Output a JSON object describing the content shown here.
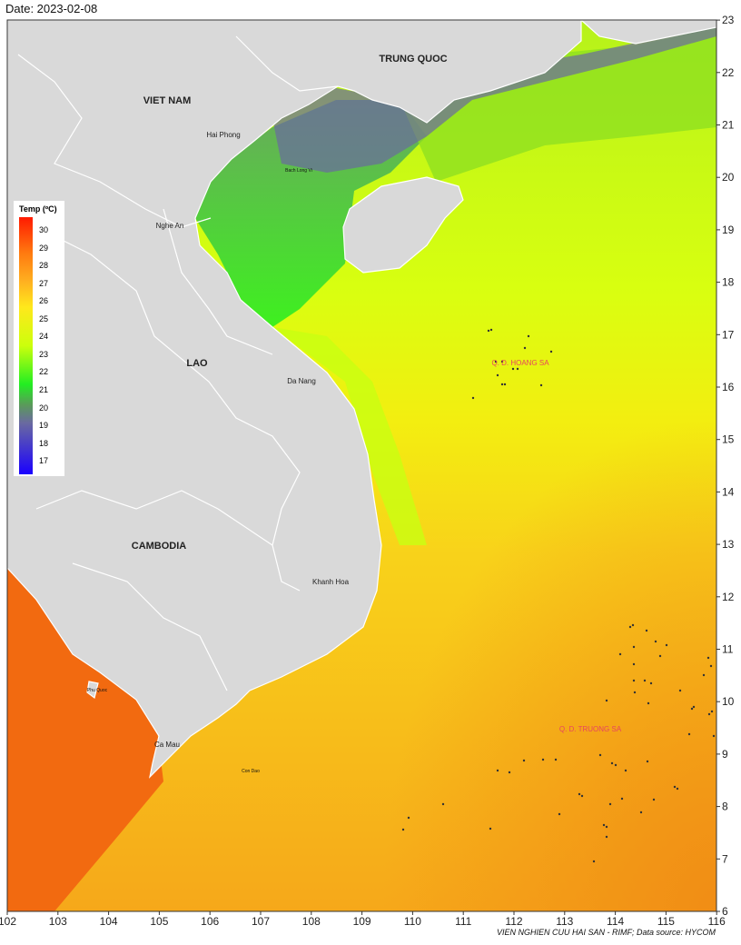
{
  "header": {
    "date": "Date: 2023-02-08"
  },
  "footer": {
    "credit": "VIEN NGHIEN CUU HAI SAN - RIMF; Data source: HYCOM"
  },
  "legend": {
    "title": "Temp (ºC)",
    "ticks": [
      "30",
      "29",
      "28",
      "27",
      "26",
      "25",
      "24",
      "23",
      "22",
      "21",
      "20",
      "19",
      "18",
      "17"
    ]
  },
  "axes": {
    "x_ticks": [
      "102",
      "103",
      "104",
      "105",
      "106",
      "107",
      "108",
      "109",
      "110",
      "111",
      "112",
      "113",
      "114",
      "115",
      "116"
    ],
    "y_ticks": [
      "6",
      "7",
      "8",
      "9",
      "10",
      "11",
      "12",
      "13",
      "14",
      "15",
      "16",
      "17",
      "18",
      "19",
      "20",
      "21",
      "22",
      "23"
    ]
  },
  "labels": {
    "countries": {
      "china": "TRUNG QUOC",
      "vietnam": "VIET NAM",
      "laos": "LAO",
      "cambodia": "CAMBODIA"
    },
    "places": {
      "hai_phong": "Hai Phong",
      "bach_long_vi": "Bach Long Vi",
      "nghe_an": "Nghe An",
      "da_nang": "Da Nang",
      "khanh_hoa": "Khanh Hoa",
      "phu_quoc": "Phu Quoc",
      "ca_mau": "Ca Mau",
      "con_dao": "Con Dao"
    },
    "archipelagos": {
      "hoang_sa": "Q. D. HOANG SA",
      "truong_sa": "Q. D. TRUONG SA"
    }
  },
  "colors": {
    "land": "#d9d9d9",
    "border": "#ffffff",
    "archipelago_label": "#e8455e"
  }
}
